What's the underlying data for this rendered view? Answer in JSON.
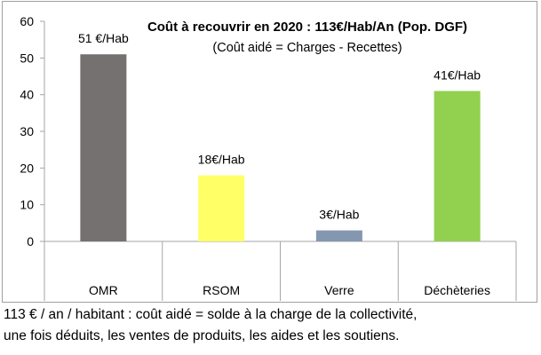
{
  "chart_data": {
    "type": "bar",
    "title": "Coût à recouvrir en 2020 : 113€/Hab/An (Pop. DGF)",
    "subtitle": "(Coût aidé = Charges - Recettes)",
    "categories": [
      "OMR",
      "RSOM",
      "Verre",
      "Déchèteries"
    ],
    "values": [
      51,
      18,
      3,
      41
    ],
    "data_labels": [
      "51 €/Hab",
      "18€/Hab",
      "3€/Hab",
      "41€/Hab"
    ],
    "colors": [
      "#767171",
      "#ffff66",
      "#8497b0",
      "#92d050"
    ],
    "ylim": [
      0,
      60
    ],
    "yticks": [
      0,
      10,
      20,
      30,
      40,
      50,
      60
    ],
    "xlabel": "",
    "ylabel": "",
    "grid": false,
    "legend": "none"
  },
  "caption": {
    "line1": "113 € / an / habitant : coût aidé = solde à la charge de la collectivité,",
    "line2": "une fois déduits, les ventes de produits, les aides et les soutiens."
  }
}
